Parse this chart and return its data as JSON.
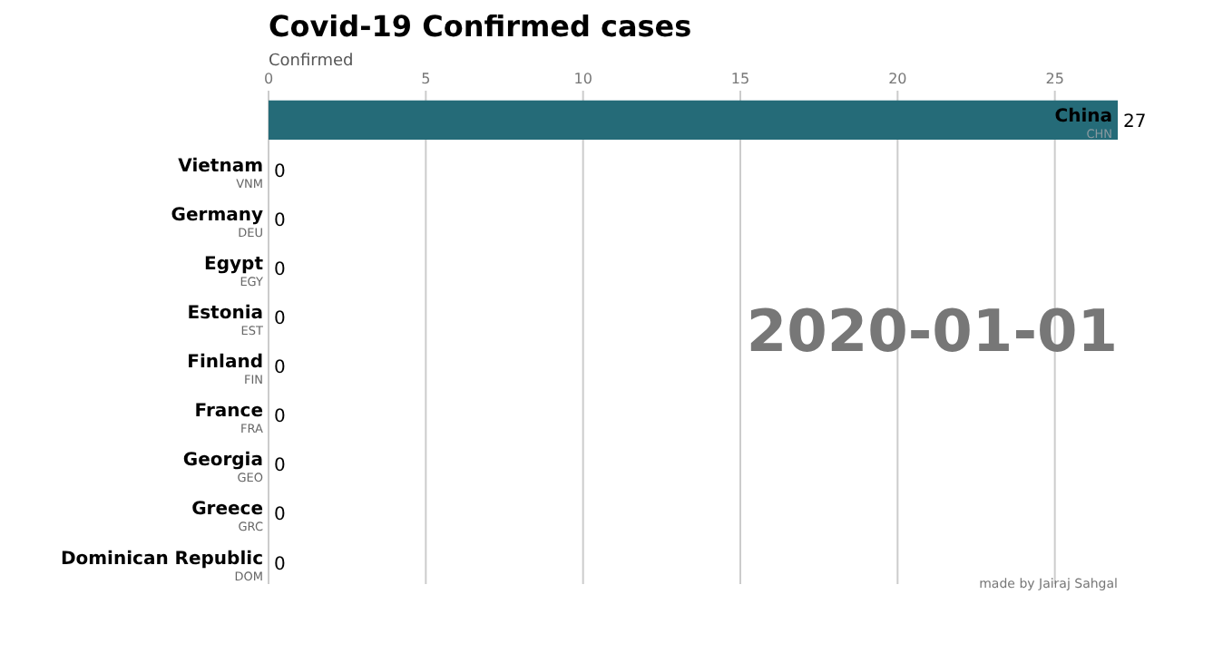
{
  "chart_data": {
    "type": "bar",
    "orientation": "horizontal",
    "title": "Covid-19 Confirmed cases",
    "xlabel": "Confirmed",
    "categories": [
      "China",
      "Vietnam",
      "Germany",
      "Egypt",
      "Estonia",
      "Finland",
      "France",
      "Georgia",
      "Greece",
      "Dominican Republic"
    ],
    "values": [
      27,
      0,
      0,
      0,
      0,
      0,
      0,
      0,
      0,
      0
    ],
    "color": "#256b78",
    "xlim": [
      0,
      27
    ],
    "xticks": [
      0,
      5,
      10,
      15,
      20,
      25
    ],
    "grid": "x",
    "data_labels": true,
    "annotations": [
      "CHN",
      "VNM",
      "DEU",
      "EGY",
      "EST",
      "FIN",
      "FRA",
      "GEO",
      "GRC",
      "DOM",
      "2020-01-01",
      "made by Jairaj Sahgal"
    ]
  }
}
